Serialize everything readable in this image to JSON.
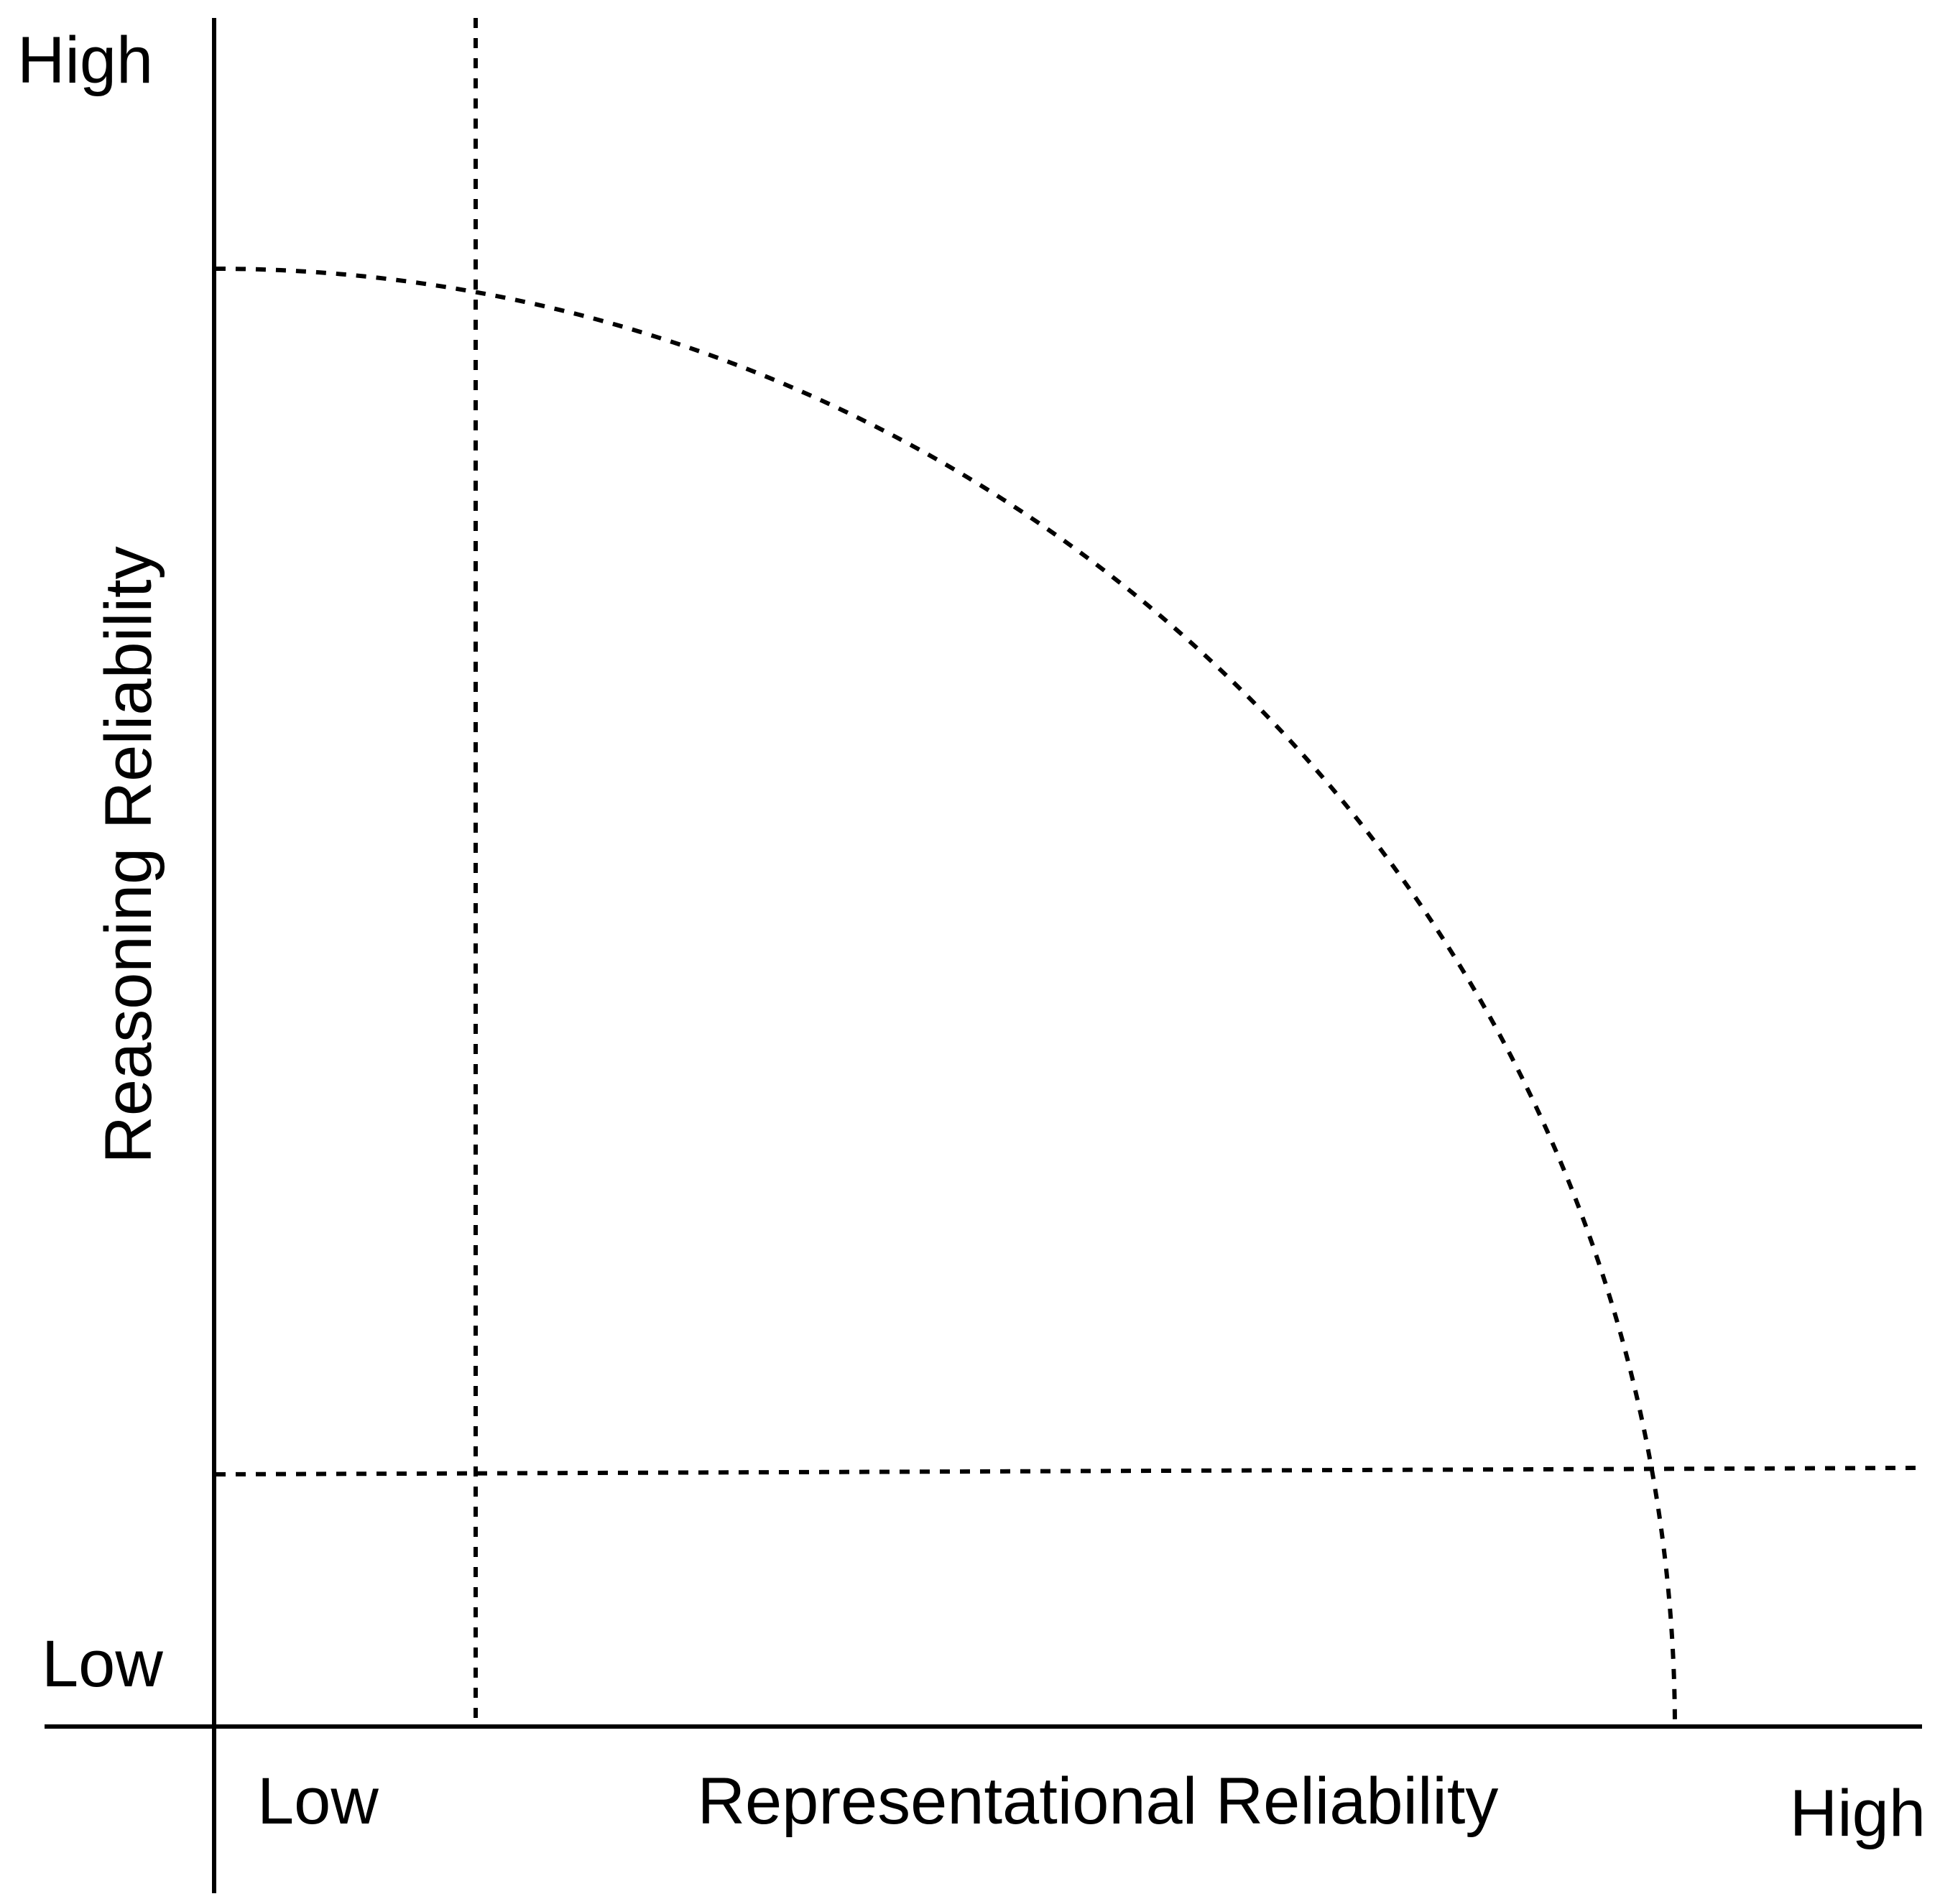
{
  "y_axis": {
    "title": "Reasoning Reliability",
    "high_label": "High",
    "low_label": "Low"
  },
  "x_axis": {
    "title": "Representational Reliability",
    "low_label": "Low",
    "high_label": "High"
  },
  "colors": {
    "line": "#000000",
    "background": "#ffffff"
  }
}
